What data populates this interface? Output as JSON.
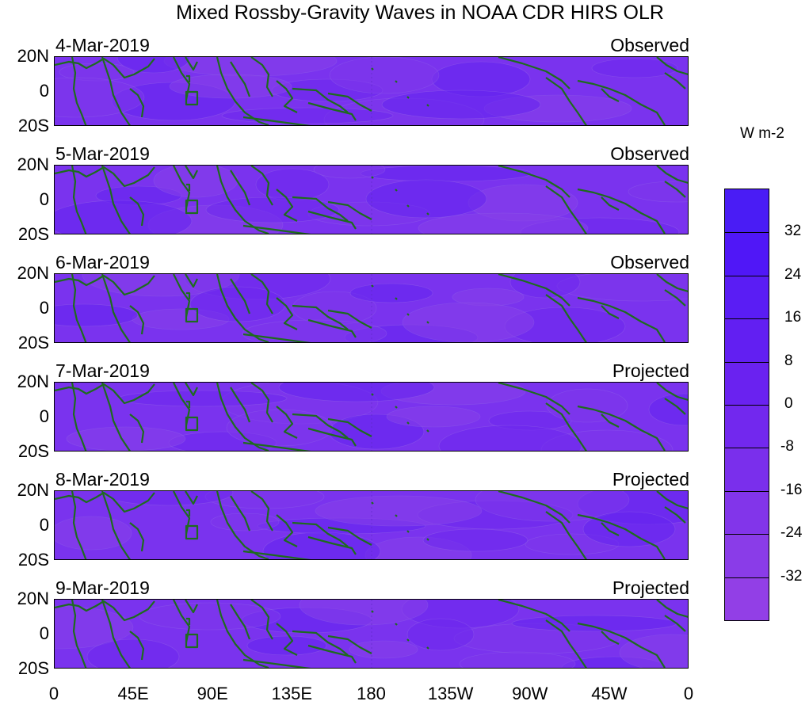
{
  "title": "Mixed Rossby-Gravity Waves in NOAA CDR HIRS OLR",
  "panels": [
    {
      "date": "4-Mar-2019",
      "status": "Observed"
    },
    {
      "date": "5-Mar-2019",
      "status": "Observed"
    },
    {
      "date": "6-Mar-2019",
      "status": "Observed"
    },
    {
      "date": "7-Mar-2019",
      "status": "Projected"
    },
    {
      "date": "8-Mar-2019",
      "status": "Projected"
    },
    {
      "date": "9-Mar-2019",
      "status": "Projected"
    }
  ],
  "lat_labels": [
    "20N",
    "0",
    "20S"
  ],
  "lon_labels": [
    "0",
    "45E",
    "90E",
    "135E",
    "180",
    "135W",
    "90W",
    "45W",
    "0"
  ],
  "colorbar": {
    "unit": "W m-2",
    "ticks": [
      "32",
      "24",
      "16",
      "8",
      "0",
      "-8",
      "-16",
      "-24",
      "-32"
    ],
    "colors": [
      "#4a1cf5",
      "#5017f7",
      "#5a1df4",
      "#621ff2",
      "#6a22f0",
      "#7228ee",
      "#7a2fec",
      "#8235ea",
      "#8a3ce8",
      "#923fe6"
    ]
  },
  "colors": {
    "coastline": "#1e6b1e",
    "map_base": "#7a33ee"
  }
}
